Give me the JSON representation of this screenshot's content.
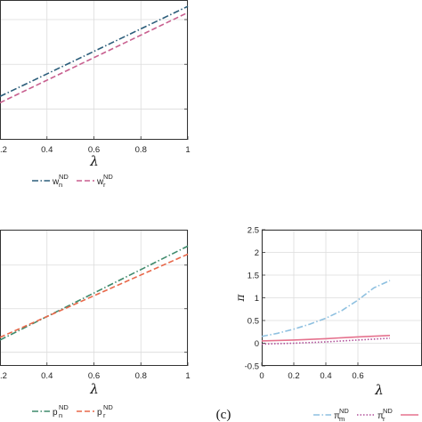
{
  "panel_c_label": "(c)",
  "chart_data": [
    {
      "type": "line",
      "panel": "top-left",
      "xlabel": "λ",
      "xlim": [
        0.2,
        1
      ],
      "ylim": [
        0,
        1
      ],
      "x_ticks": [
        ".2",
        "0.4",
        "0.6",
        "0.8",
        "1"
      ],
      "x_tick_values": [
        0.2,
        0.4,
        0.6,
        0.8,
        1.0
      ],
      "y_gridlines": [
        0.22,
        0.54,
        0.86
      ],
      "series": [
        {
          "name": "w",
          "sub": "n",
          "sup": "ND",
          "color": "#2b5d7a",
          "dash": "7,2.5,1.5,2.5",
          "x": [
            0.2,
            1.0
          ],
          "y": [
            0.31,
            0.955
          ]
        },
        {
          "name": "w",
          "sub": "r",
          "sup": "ND",
          "color": "#c85f8f",
          "dash": "6,3",
          "x": [
            0.2,
            1.0
          ],
          "y": [
            0.265,
            0.91
          ]
        }
      ],
      "legend": "bottom"
    },
    {
      "type": "line",
      "panel": "bottom-left",
      "xlabel": "λ",
      "xlim": [
        0.2,
        1
      ],
      "ylim": [
        0,
        1
      ],
      "x_ticks": [
        ".2",
        "0.4",
        "0.6",
        "0.8",
        "1"
      ],
      "x_tick_values": [
        0.2,
        0.4,
        0.6,
        0.8,
        1.0
      ],
      "y_gridlines": [
        0.1,
        0.42,
        0.74
      ],
      "series": [
        {
          "name": "p",
          "sub": "n",
          "sup": "ND",
          "color": "#3f8a6c",
          "dash": "7,2.5,1.5,2.5",
          "x": [
            0.2,
            1.0
          ],
          "y": [
            0.19,
            0.88
          ]
        },
        {
          "name": "p",
          "sub": "r",
          "sup": "ND",
          "color": "#e8684a",
          "dash": "6,3",
          "x": [
            0.2,
            1.0
          ],
          "y": [
            0.21,
            0.82
          ]
        }
      ],
      "legend": "bottom"
    },
    {
      "type": "line",
      "panel": "bottom-right",
      "xlabel": "λ",
      "ylabel": "π",
      "xlim": [
        0,
        1
      ],
      "ylim": [
        -0.5,
        2.5
      ],
      "x_ticks": [
        "0",
        "0.2",
        "0.4",
        "0.6"
      ],
      "x_tick_values": [
        0,
        0.2,
        0.4,
        0.6
      ],
      "y_ticks": [
        "-0.5",
        "0",
        "0.5",
        "1",
        "1.5",
        "2",
        "2.5"
      ],
      "y_tick_values": [
        -0.5,
        0,
        0.5,
        1,
        1.5,
        2,
        2.5
      ],
      "series": [
        {
          "name": "π",
          "sub": "m",
          "sup": "ND",
          "color": "#8ec0e0",
          "dash": "7,2.5,1.5,2.5",
          "x": [
            0,
            0.1,
            0.2,
            0.3,
            0.4,
            0.5,
            0.6,
            0.7,
            0.8
          ],
          "y": [
            0.15,
            0.22,
            0.31,
            0.42,
            0.55,
            0.72,
            0.95,
            1.22,
            1.38
          ]
        },
        {
          "name": "π",
          "sub": "r",
          "sup": "ND",
          "color": "#b0509a",
          "dash": "1.5,2",
          "x": [
            0,
            0.2,
            0.4,
            0.6,
            0.8
          ],
          "y": [
            -0.02,
            0.0,
            0.03,
            0.07,
            0.11
          ]
        },
        {
          "name": "",
          "sub": "",
          "sup": "",
          "color": "#e5728e",
          "dash": "",
          "x": [
            0,
            0.2,
            0.4,
            0.6,
            0.8
          ],
          "y": [
            0.05,
            0.07,
            0.1,
            0.14,
            0.17
          ]
        }
      ],
      "legend": "bottom"
    }
  ]
}
